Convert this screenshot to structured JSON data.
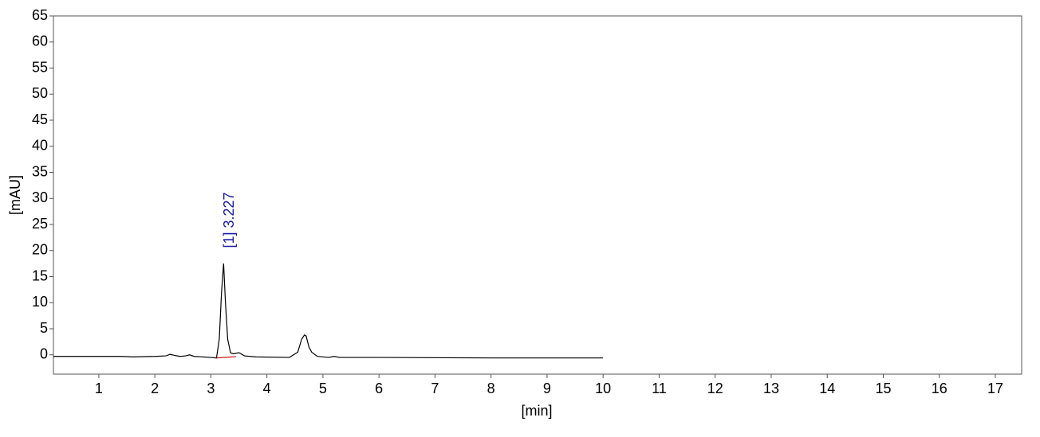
{
  "chart_data": {
    "type": "line",
    "x_label": "[min]",
    "y_label": "[mAU]",
    "x": [
      0.19,
      1.4,
      1.6,
      2.0,
      2.2,
      2.27,
      2.35,
      2.45,
      2.55,
      2.62,
      2.7,
      3.0,
      3.1,
      3.15,
      3.19,
      3.227,
      3.26,
      3.3,
      3.35,
      3.4,
      3.5,
      3.6,
      3.8,
      4.4,
      4.55,
      4.62,
      4.67,
      4.7,
      4.75,
      4.8,
      4.9,
      5.1,
      5.2,
      5.3,
      6,
      8,
      10
    ],
    "series": [
      {
        "color": "#000000",
        "values": [
          -0.3,
          -0.3,
          -0.4,
          -0.3,
          -0.2,
          0.1,
          -0.1,
          -0.3,
          -0.2,
          0,
          -0.3,
          -0.5,
          -0.6,
          3,
          12,
          17.5,
          10,
          3,
          0.4,
          0.2,
          0.4,
          -0.2,
          -0.4,
          -0.5,
          0.5,
          3,
          3.8,
          3.6,
          1.5,
          0.5,
          -0.3,
          -0.5,
          -0.3,
          -0.5,
          -0.5,
          -0.6,
          -0.6
        ]
      }
    ],
    "baseline": {
      "color": "#cc0000",
      "x": [
        3.1,
        3.45
      ],
      "values": [
        -0.6,
        -0.35
      ]
    },
    "annotations": [
      {
        "text": "[1]  3.227",
        "x": 3.227,
        "y": 20.5,
        "color": "#1a1aaa"
      }
    ],
    "xlim": [
      0.19,
      17.47
    ],
    "ylim": [
      -3.7,
      65
    ],
    "xticks": [
      1,
      2,
      3,
      4,
      5,
      6,
      7,
      8,
      9,
      10,
      11,
      12,
      13,
      14,
      15,
      16,
      17
    ],
    "yticks": [
      0,
      5,
      10,
      15,
      20,
      25,
      30,
      35,
      40,
      45,
      50,
      55,
      60,
      65
    ]
  }
}
